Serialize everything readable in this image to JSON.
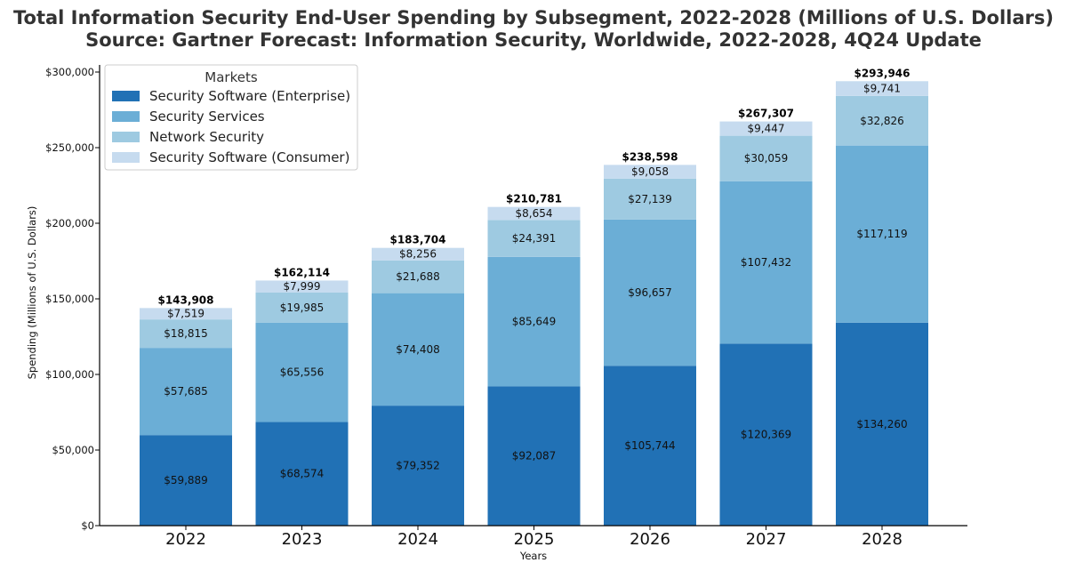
{
  "chart_data": {
    "type": "bar",
    "stacked": true,
    "title": "Total Information Security End-User Spending by Subsegment, 2022-2028 (Millions of U.S. Dollars)",
    "subtitle": "Source: Gartner Forecast: Information Security, Worldwide, 2022-2028, 4Q24 Update",
    "xlabel": "Years",
    "ylabel": "Spending (Millions of U.S. Dollars)",
    "ylim": [
      0,
      300000
    ],
    "y_ticks": [
      0,
      50000,
      100000,
      150000,
      200000,
      250000,
      300000
    ],
    "y_tick_labels": [
      "$0",
      "$50,000",
      "$100,000",
      "$150,000",
      "$200,000",
      "$250,000",
      "$300,000"
    ],
    "categories": [
      "2022",
      "2023",
      "2024",
      "2025",
      "2026",
      "2027",
      "2028"
    ],
    "series": [
      {
        "name": "Security Software (Enterprise)",
        "color": "#2171b5",
        "values": [
          59889,
          68574,
          79352,
          92087,
          105744,
          120369,
          134260
        ],
        "labels": [
          "$59,889",
          "$68,574",
          "$79,352",
          "$92,087",
          "$105,744",
          "$120,369",
          "$134,260"
        ]
      },
      {
        "name": "Security Services",
        "color": "#6baed6",
        "values": [
          57685,
          65556,
          74408,
          85649,
          96657,
          107432,
          117119
        ],
        "labels": [
          "$57,685",
          "$65,556",
          "$74,408",
          "$85,649",
          "$96,657",
          "$107,432",
          "$117,119"
        ]
      },
      {
        "name": "Network Security",
        "color": "#9ecae1",
        "values": [
          18815,
          19985,
          21688,
          24391,
          27139,
          30059,
          32826
        ],
        "labels": [
          "$18,815",
          "$19,985",
          "$21,688",
          "$24,391",
          "$27,139",
          "$30,059",
          "$32,826"
        ]
      },
      {
        "name": "Security Software (Consumer)",
        "color": "#c6dbef",
        "values": [
          7519,
          7999,
          8256,
          8654,
          9058,
          9447,
          9741
        ],
        "labels": [
          "$7,519",
          "$7,999",
          "$8,256",
          "$8,654",
          "$9,058",
          "$9,447",
          "$9,741"
        ]
      }
    ],
    "totals": [
      143908,
      162114,
      183704,
      210781,
      238598,
      267307,
      293946
    ],
    "total_labels": [
      "$143,908",
      "$162,114",
      "$183,704",
      "$210,781",
      "$238,598",
      "$267,307",
      "$293,946"
    ],
    "legend": {
      "title": "Markets",
      "placement": "top-left"
    },
    "grid": false
  }
}
